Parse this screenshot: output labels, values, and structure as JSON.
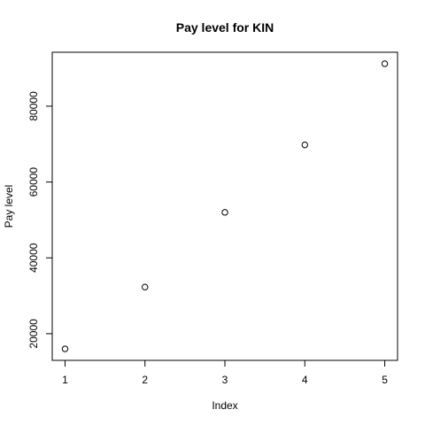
{
  "chart_data": {
    "type": "scatter",
    "title": "Pay level for  KIN",
    "xlabel": "Index",
    "ylabel": "Pay level",
    "x": [
      1,
      2,
      3,
      4,
      5
    ],
    "y": [
      16000,
      32300,
      52000,
      69800,
      91200
    ],
    "xlim": [
      0.84,
      5.16
    ],
    "ylim": [
      12970,
      94230
    ],
    "xticks": [
      1,
      2,
      3,
      4,
      5
    ],
    "yticks": [
      20000,
      40000,
      60000,
      80000
    ],
    "grid": false,
    "marker": "open-circle",
    "colors": {
      "points": "#000000",
      "axes": "#000000",
      "background": "#ffffff"
    }
  }
}
